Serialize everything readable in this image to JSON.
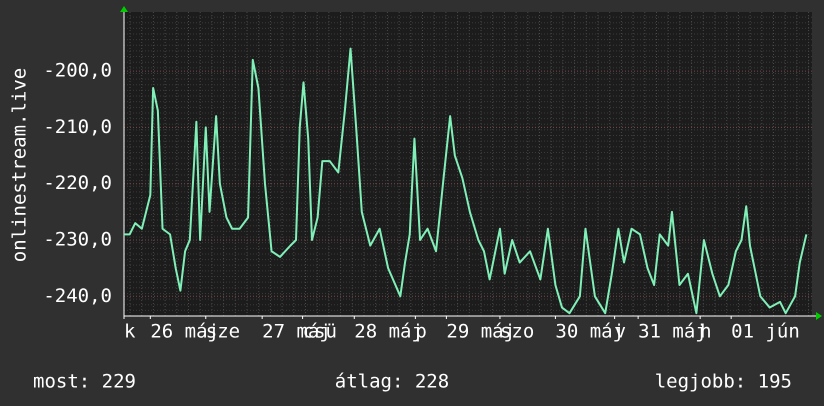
{
  "chart_data": {
    "type": "line",
    "y_label": "onlinestream.live",
    "x": [
      0,
      0.06,
      0.12,
      0.19,
      0.28,
      0.31,
      0.36,
      0.41,
      0.49,
      0.55,
      0.6,
      0.65,
      0.7,
      0.77,
      0.81,
      0.87,
      0.91,
      0.98,
      1.02,
      1.09,
      1.15,
      1.23,
      1.32,
      1.37,
      1.43,
      1.5,
      1.57,
      1.66,
      1.77,
      1.83,
      1.87,
      1.91,
      1.96,
      2.0,
      2.06,
      2.11,
      2.19,
      2.28,
      2.35,
      2.41,
      2.47,
      2.53,
      2.62,
      2.72,
      2.81,
      2.94,
      2.99,
      3.04,
      3.09,
      3.15,
      3.23,
      3.32,
      3.4,
      3.47,
      3.52,
      3.6,
      3.68,
      3.77,
      3.83,
      3.89,
      4.0,
      4.05,
      4.13,
      4.21,
      4.32,
      4.43,
      4.51,
      4.59,
      4.66,
      4.74,
      4.85,
      4.91,
      5.01,
      5.12,
      5.19,
      5.26,
      5.32,
      5.4,
      5.49,
      5.57,
      5.64,
      5.7,
      5.79,
      5.83,
      5.91,
      6.0,
      6.09,
      6.17,
      6.26,
      6.34,
      6.43,
      6.51,
      6.57,
      6.62,
      6.66,
      6.77,
      6.87,
      6.98,
      7.04,
      7.14,
      7.19,
      7.26
    ],
    "series": [
      {
        "color": "#80f0b8",
        "values": [
          -229,
          -229,
          -227,
          -228,
          -222,
          -203,
          -207,
          -228,
          -229,
          -235,
          -239,
          -232,
          -230,
          -209,
          -230,
          -210,
          -225,
          -208,
          -220,
          -226,
          -228,
          -228,
          -226,
          -198,
          -203,
          -220,
          -232,
          -233,
          -231,
          -230,
          -210,
          -202,
          -212,
          -230,
          -226,
          -216,
          -216,
          -218,
          -207,
          -196,
          -210,
          -225,
          -231,
          -228,
          -235,
          -240,
          -234,
          -229,
          -212,
          -230,
          -228,
          -232,
          -219,
          -208,
          -215,
          -219,
          -225,
          -230,
          -232,
          -237,
          -228,
          -236,
          -230,
          -234,
          -232,
          -237,
          -228,
          -238,
          -242,
          -243,
          -240,
          -228,
          -240,
          -243,
          -236,
          -228,
          -234,
          -228,
          -229,
          -235,
          -238,
          -229,
          -231,
          -225,
          -238,
          -236,
          -243,
          -230,
          -236,
          -240,
          -238,
          -232,
          -230,
          -224,
          -231,
          -240,
          -242,
          -241,
          -243,
          -240,
          -234,
          -229
        ]
      }
    ],
    "xlim": [
      0,
      7.32
    ],
    "ylim": [
      -243.5,
      -189.5
    ],
    "yticks": [
      {
        "value": -200,
        "label": "-200,0"
      },
      {
        "value": -210,
        "label": "-210,0"
      },
      {
        "value": -220,
        "label": "-220,0"
      },
      {
        "value": -230,
        "label": "-230,0"
      },
      {
        "value": -240,
        "label": "-240,0"
      }
    ],
    "xticks": [
      {
        "value": 0,
        "label": "k"
      },
      {
        "value": 0.28,
        "label": "26 máj"
      },
      {
        "value": 0.87,
        "label": "sze"
      },
      {
        "value": 1.47,
        "label": "27 máj"
      },
      {
        "value": 1.9,
        "label": "csü"
      },
      {
        "value": 2.45,
        "label": "28 máj"
      },
      {
        "value": 3.1,
        "label": "p"
      },
      {
        "value": 3.43,
        "label": "29 máj"
      },
      {
        "value": 4.0,
        "label": "szo"
      },
      {
        "value": 4.59,
        "label": "30 máj"
      },
      {
        "value": 5.22,
        "label": "v"
      },
      {
        "value": 5.47,
        "label": "31 máj"
      },
      {
        "value": 6.13,
        "label": "h"
      },
      {
        "value": 6.46,
        "label": "01 jún"
      }
    ],
    "grid": true,
    "stats": [
      "most: 229",
      "átlag: 228",
      "legjobb: 195"
    ]
  }
}
